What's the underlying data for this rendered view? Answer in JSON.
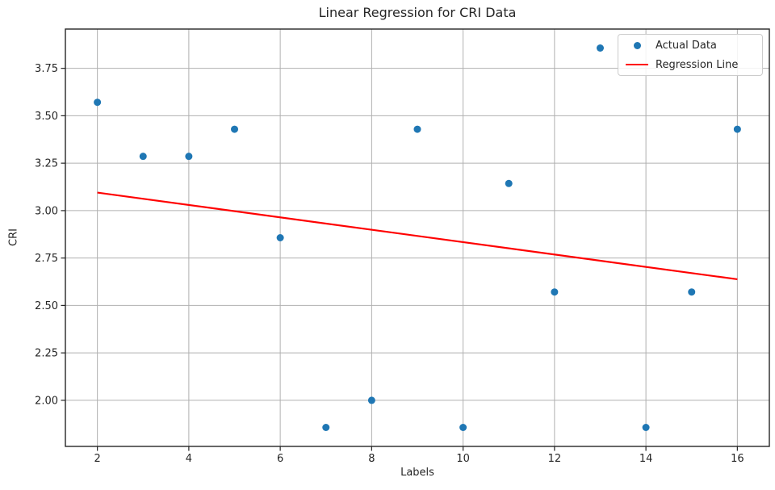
{
  "title": "Linear Regression for CRI Data",
  "xlabel": "Labels",
  "ylabel": "CRI",
  "legend": [
    {
      "label": "Actual Data",
      "swatch": "dot-icon",
      "color": "#1f77b4"
    },
    {
      "label": "Regression Line",
      "swatch": "line-icon",
      "color": "#ff0000"
    }
  ],
  "colors": {
    "scatter": "#1f77b4",
    "regression": "#ff0000",
    "grid": "#b0b0b0",
    "spine": "#262626",
    "text": "#262626"
  },
  "chart_data": {
    "type": "scatter",
    "title": "Linear Regression for CRI Data",
    "xlabel": "Labels",
    "ylabel": "CRI",
    "xlim": [
      1.3,
      16.7
    ],
    "ylim": [
      1.757,
      3.957
    ],
    "x_ticks": [
      2,
      4,
      6,
      8,
      10,
      12,
      14,
      16
    ],
    "y_ticks": [
      2.0,
      2.25,
      2.5,
      2.75,
      3.0,
      3.25,
      3.5,
      3.75
    ],
    "grid": true,
    "legend_position": "upper right",
    "series": [
      {
        "name": "Actual Data",
        "type": "scatter",
        "color": "#1f77b4",
        "x": [
          2,
          3,
          4,
          5,
          6,
          7,
          8,
          9,
          10,
          11,
          12,
          13,
          14,
          15,
          16
        ],
        "y": [
          3.571,
          3.286,
          3.286,
          3.429,
          2.857,
          1.857,
          2.0,
          3.429,
          1.857,
          3.143,
          2.571,
          3.857,
          1.857,
          2.571,
          3.429
        ]
      },
      {
        "name": "Regression Line",
        "type": "line",
        "color": "#ff0000",
        "slope": -0.0327,
        "intercept": 3.161,
        "x": [
          2,
          16
        ],
        "y": [
          3.095,
          2.638
        ]
      }
    ]
  }
}
